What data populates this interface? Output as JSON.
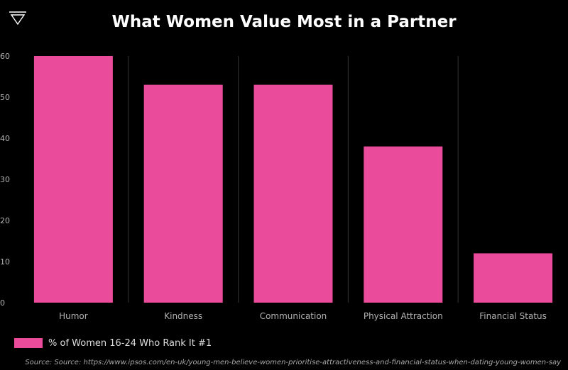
{
  "chart_data": {
    "type": "bar",
    "title": "What Women Value Most in a Partner",
    "xlabel": "",
    "ylabel": "",
    "categories": [
      "Humor",
      "Kindness",
      "Communication",
      "Physical Attraction",
      "Financial Status"
    ],
    "series": [
      {
        "name": "% of Women 16-24 Who Rank It #1",
        "values": [
          60,
          53,
          53,
          38,
          12
        ],
        "color": "#ea4c9b"
      }
    ],
    "ylim": [
      0,
      60
    ],
    "yticks": [
      "0",
      "10",
      "20",
      "30",
      "40",
      "50",
      "60"
    ],
    "grid": "vertical category separators",
    "legend_position": "bottom-left",
    "source": "Source: Source: https://www.ipsos.com/en-uk/young-men-believe-women-prioritise-attractiveness-and-financial-status-when-dating-young-women-say"
  },
  "colors": {
    "background": "#000000",
    "bar": "#ea4c9b",
    "text": "#ffffff",
    "axis_text": "#b3b3b3",
    "gridline": "#333333"
  },
  "logo": {
    "icon": "triangle-logo-icon"
  }
}
